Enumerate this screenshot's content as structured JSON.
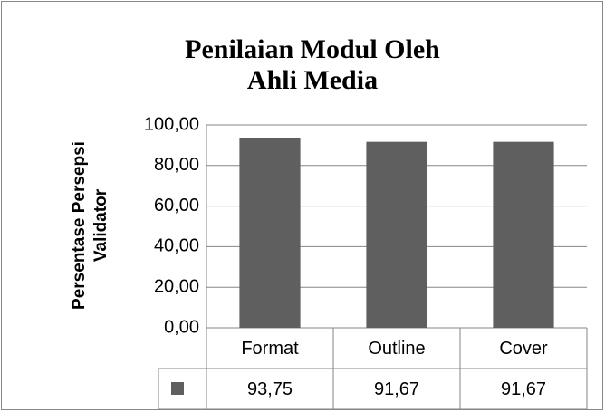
{
  "chart_data": {
    "type": "bar",
    "title": "Penilaian Modul Oleh Ahli Media",
    "y_label": "Persentase Persepsi Validator",
    "categories": [
      "Format",
      "Outline",
      "Cover"
    ],
    "values": [
      93.75,
      91.67,
      91.67
    ],
    "value_labels": [
      "93,75",
      "91,67",
      "91,67"
    ],
    "color": "#5f5f5f",
    "ylim": [
      0,
      100
    ],
    "yticks": [
      {
        "value": 0,
        "label": "0,00"
      },
      {
        "value": 20,
        "label": "20,00"
      },
      {
        "value": 40,
        "label": "40,00"
      },
      {
        "value": 60,
        "label": "60,00"
      },
      {
        "value": 80,
        "label": "80,00"
      },
      {
        "value": 100,
        "label": "100,00"
      }
    ],
    "grid": true
  }
}
